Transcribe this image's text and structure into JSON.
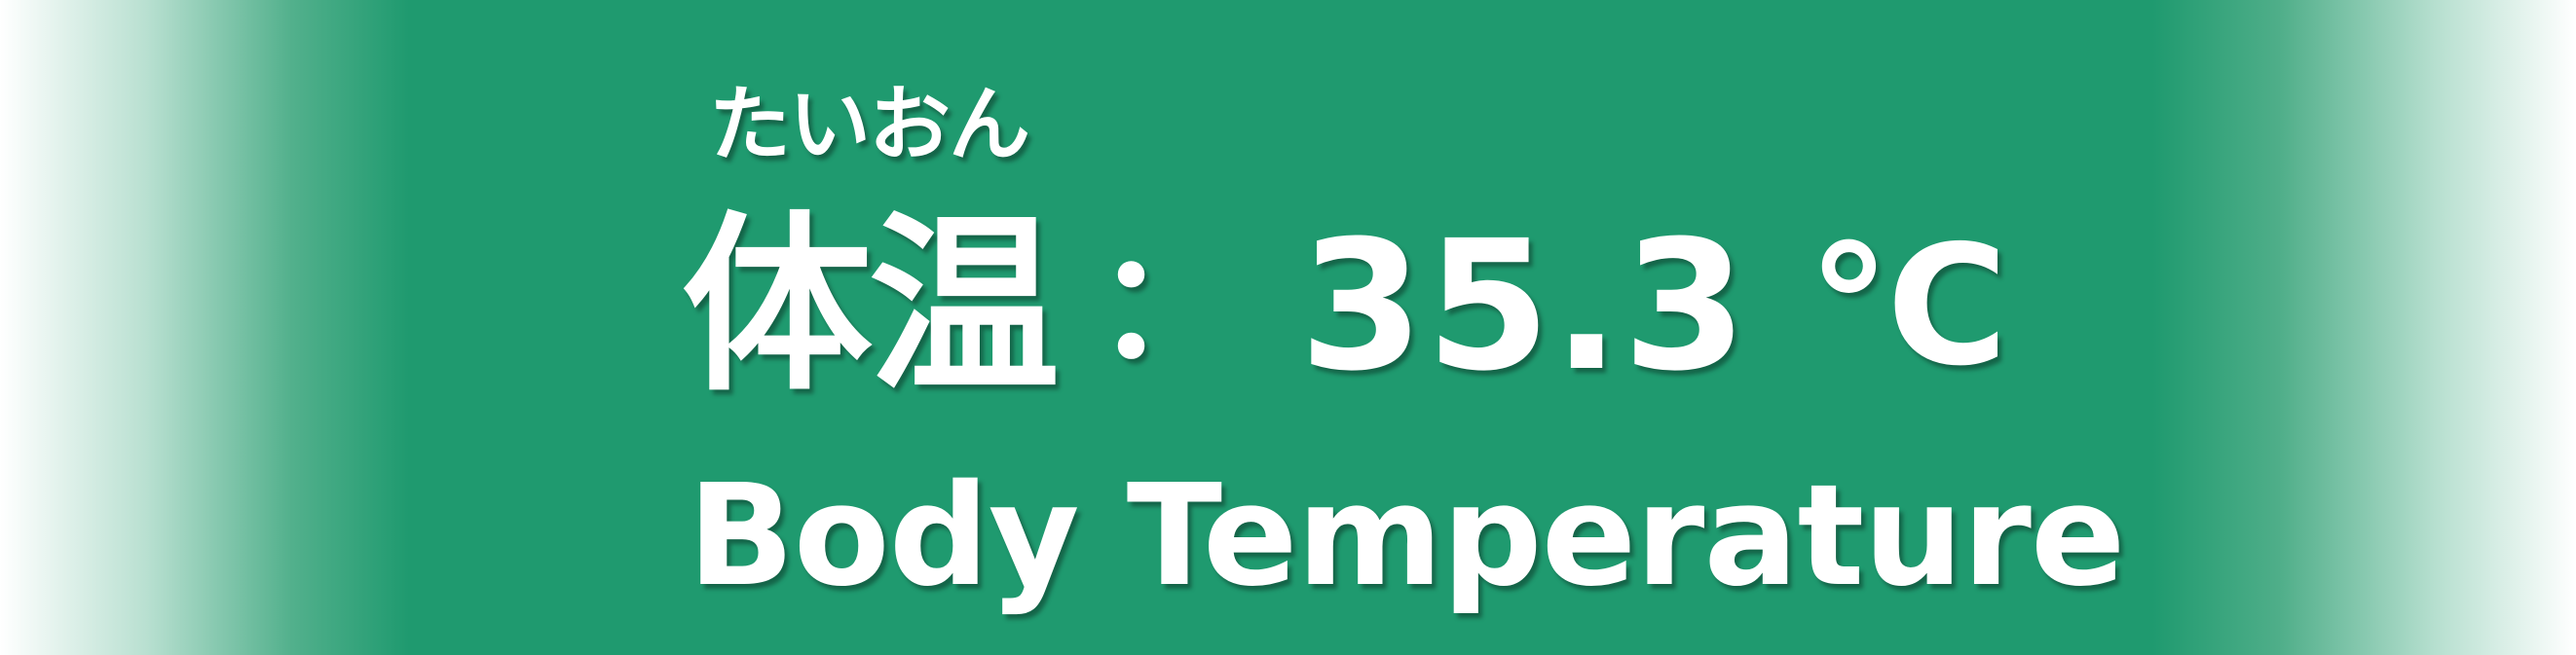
{
  "label": {
    "reading": "たいおん",
    "japanese": "体温",
    "separator": "：",
    "value": "35.3",
    "unit": "℃",
    "english": "Body Temperature"
  },
  "colors": {
    "background": "#1f9a6f",
    "text": "#ffffff"
  }
}
